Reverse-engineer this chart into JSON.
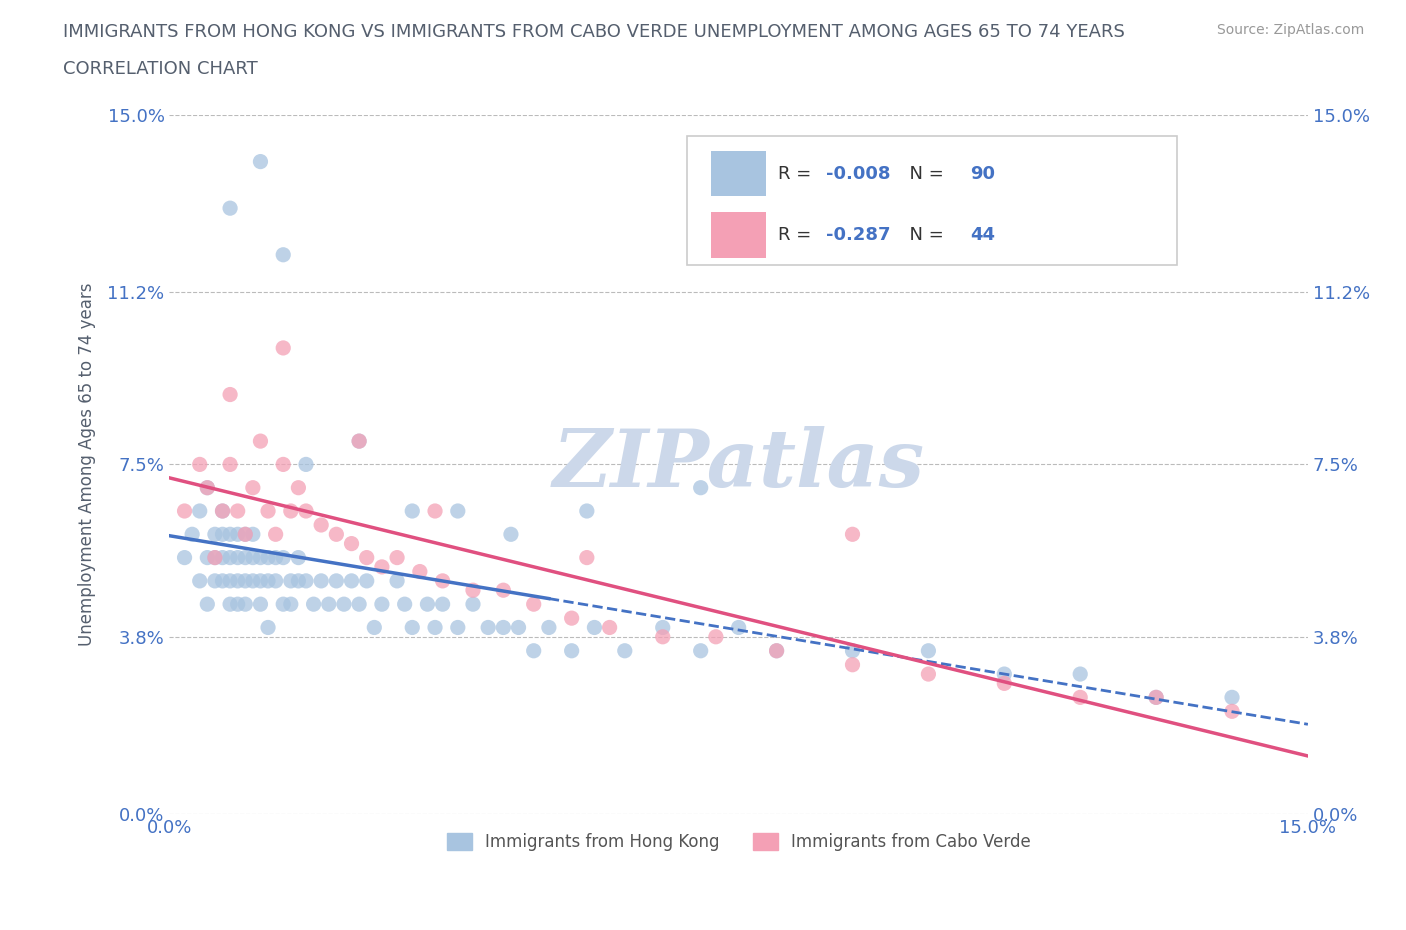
{
  "title_line1": "IMMIGRANTS FROM HONG KONG VS IMMIGRANTS FROM CABO VERDE UNEMPLOYMENT AMONG AGES 65 TO 74 YEARS",
  "title_line2": "CORRELATION CHART",
  "source_text": "Source: ZipAtlas.com",
  "ylabel": "Unemployment Among Ages 65 to 74 years",
  "xlim": [
    0.0,
    0.15
  ],
  "ylim": [
    0.0,
    0.15
  ],
  "ytick_vals": [
    0.0,
    0.038,
    0.075,
    0.112,
    0.15
  ],
  "ytick_labels": [
    "0.0%",
    "3.8%",
    "7.5%",
    "11.2%",
    "15.0%"
  ],
  "xtick_vals": [
    0.0,
    0.075,
    0.15
  ],
  "xtick_labels": [
    "0.0%",
    "",
    "15.0%"
  ],
  "hk_color": "#a8c4e0",
  "cv_color": "#f4a0b5",
  "hk_line_color": "#4472c4",
  "cv_line_color": "#e05080",
  "hk_R": -0.008,
  "hk_N": 90,
  "cv_R": -0.287,
  "cv_N": 44,
  "legend_label_hk": "Immigrants from Hong Kong",
  "legend_label_cv": "Immigrants from Cabo Verde",
  "title_color": "#555f6e",
  "tick_label_color": "#4472c4",
  "watermark_color": "#ccd8ea",
  "hk_x": [
    0.002,
    0.003,
    0.004,
    0.004,
    0.005,
    0.005,
    0.005,
    0.006,
    0.006,
    0.006,
    0.007,
    0.007,
    0.007,
    0.007,
    0.008,
    0.008,
    0.008,
    0.008,
    0.009,
    0.009,
    0.009,
    0.009,
    0.01,
    0.01,
    0.01,
    0.01,
    0.011,
    0.011,
    0.011,
    0.012,
    0.012,
    0.012,
    0.013,
    0.013,
    0.013,
    0.014,
    0.014,
    0.015,
    0.015,
    0.016,
    0.016,
    0.017,
    0.017,
    0.018,
    0.019,
    0.02,
    0.021,
    0.022,
    0.023,
    0.024,
    0.025,
    0.026,
    0.027,
    0.028,
    0.03,
    0.031,
    0.032,
    0.034,
    0.035,
    0.036,
    0.038,
    0.04,
    0.042,
    0.044,
    0.046,
    0.048,
    0.05,
    0.053,
    0.056,
    0.06,
    0.065,
    0.07,
    0.075,
    0.08,
    0.09,
    0.1,
    0.11,
    0.12,
    0.13,
    0.14,
    0.008,
    0.012,
    0.015,
    0.018,
    0.025,
    0.032,
    0.038,
    0.045,
    0.055,
    0.07
  ],
  "hk_y": [
    0.055,
    0.06,
    0.05,
    0.065,
    0.055,
    0.045,
    0.07,
    0.05,
    0.055,
    0.06,
    0.06,
    0.055,
    0.05,
    0.065,
    0.055,
    0.06,
    0.05,
    0.045,
    0.055,
    0.05,
    0.06,
    0.045,
    0.055,
    0.05,
    0.06,
    0.045,
    0.055,
    0.05,
    0.06,
    0.055,
    0.05,
    0.045,
    0.055,
    0.05,
    0.04,
    0.055,
    0.05,
    0.045,
    0.055,
    0.05,
    0.045,
    0.05,
    0.055,
    0.05,
    0.045,
    0.05,
    0.045,
    0.05,
    0.045,
    0.05,
    0.045,
    0.05,
    0.04,
    0.045,
    0.05,
    0.045,
    0.04,
    0.045,
    0.04,
    0.045,
    0.04,
    0.045,
    0.04,
    0.04,
    0.04,
    0.035,
    0.04,
    0.035,
    0.04,
    0.035,
    0.04,
    0.035,
    0.04,
    0.035,
    0.035,
    0.035,
    0.03,
    0.03,
    0.025,
    0.025,
    0.13,
    0.14,
    0.12,
    0.075,
    0.08,
    0.065,
    0.065,
    0.06,
    0.065,
    0.07
  ],
  "cv_x": [
    0.002,
    0.004,
    0.005,
    0.006,
    0.007,
    0.008,
    0.009,
    0.01,
    0.011,
    0.012,
    0.013,
    0.014,
    0.015,
    0.016,
    0.017,
    0.018,
    0.02,
    0.022,
    0.024,
    0.026,
    0.028,
    0.03,
    0.033,
    0.036,
    0.04,
    0.044,
    0.048,
    0.053,
    0.058,
    0.065,
    0.072,
    0.08,
    0.09,
    0.1,
    0.11,
    0.12,
    0.13,
    0.14,
    0.008,
    0.015,
    0.025,
    0.035,
    0.055,
    0.09
  ],
  "cv_y": [
    0.065,
    0.075,
    0.07,
    0.055,
    0.065,
    0.075,
    0.065,
    0.06,
    0.07,
    0.08,
    0.065,
    0.06,
    0.075,
    0.065,
    0.07,
    0.065,
    0.062,
    0.06,
    0.058,
    0.055,
    0.053,
    0.055,
    0.052,
    0.05,
    0.048,
    0.048,
    0.045,
    0.042,
    0.04,
    0.038,
    0.038,
    0.035,
    0.032,
    0.03,
    0.028,
    0.025,
    0.025,
    0.022,
    0.09,
    0.1,
    0.08,
    0.065,
    0.055,
    0.06
  ]
}
